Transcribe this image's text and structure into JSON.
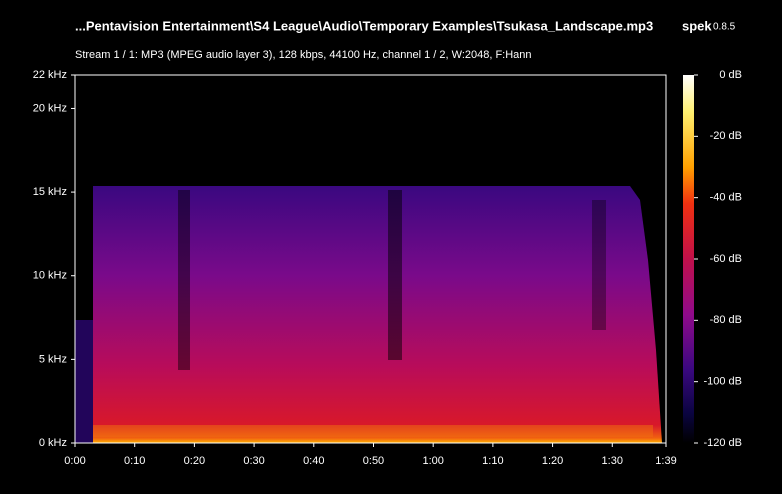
{
  "chart_data": {
    "type": "spectrogram",
    "title": "...Pentavision Entertainment\\S4 League\\Audio\\Temporary Examples\\Tsukasa_Landscape.mp3",
    "app_name": "spek",
    "app_version": "0.8.5",
    "subtitle": "Stream 1 / 1: MP3 (MPEG audio layer 3), 128 kbps, 44100 Hz, channel 1 / 2, W:2048, F:Hann",
    "xlim": [
      0,
      99
    ],
    "xticks": [
      {
        "value": 0,
        "label": "0:00"
      },
      {
        "value": 10,
        "label": "0:10"
      },
      {
        "value": 20,
        "label": "0:20"
      },
      {
        "value": 30,
        "label": "0:30"
      },
      {
        "value": 40,
        "label": "0:40"
      },
      {
        "value": 50,
        "label": "0:50"
      },
      {
        "value": 60,
        "label": "1:00"
      },
      {
        "value": 70,
        "label": "1:10"
      },
      {
        "value": 80,
        "label": "1:20"
      },
      {
        "value": 90,
        "label": "1:30"
      },
      {
        "value": 99,
        "label": "1:39"
      }
    ],
    "ylim": [
      0,
      22
    ],
    "yticks": [
      {
        "value": 0,
        "label": "0 kHz"
      },
      {
        "value": 5,
        "label": "5 kHz"
      },
      {
        "value": 10,
        "label": "10 kHz"
      },
      {
        "value": 15,
        "label": "15 kHz"
      },
      {
        "value": 20,
        "label": "20 kHz"
      },
      {
        "value": 22,
        "label": "22 kHz"
      }
    ],
    "clim": [
      -120,
      0
    ],
    "cticks": [
      {
        "value": 0,
        "label": "0 dB"
      },
      {
        "value": -20,
        "label": "-20 dB"
      },
      {
        "value": -40,
        "label": "-40 dB"
      },
      {
        "value": -60,
        "label": "-60 dB"
      },
      {
        "value": -80,
        "label": "-80 dB"
      },
      {
        "value": -100,
        "label": "-100 dB"
      },
      {
        "value": -120,
        "label": "-120 dB"
      }
    ]
  }
}
